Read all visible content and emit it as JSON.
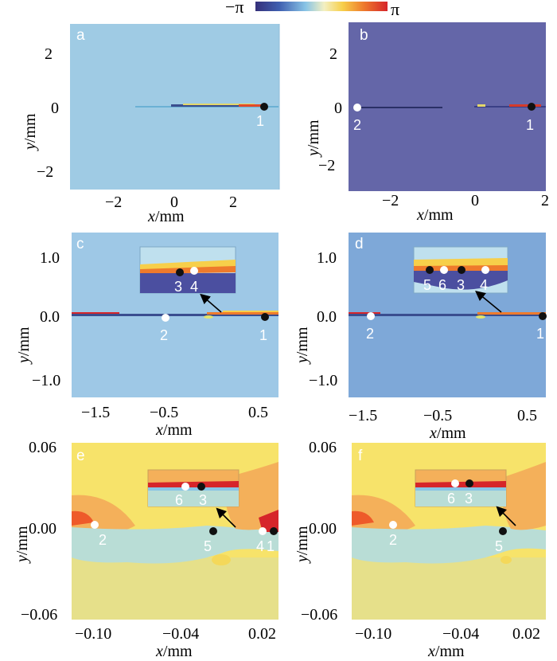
{
  "colorbar": {
    "min_label": "−π",
    "max_label": "π",
    "colors": [
      "#35307a",
      "#3f5fb0",
      "#88c4e6",
      "#f3f0c2",
      "#f7cf4a",
      "#ee7a2c",
      "#d6252a"
    ]
  },
  "panels": {
    "a": {
      "label": "a",
      "background": "#9fcbe4",
      "x_ticks": [
        "−2",
        "0",
        "2"
      ],
      "y_ticks": [
        "2",
        "0",
        "−2"
      ],
      "xlabel_var": "x",
      "xlabel_unit": "/mm",
      "ylabel_var": "y",
      "ylabel_unit": "/mm",
      "points": [
        {
          "id": "1",
          "color": "black",
          "label": "1"
        }
      ]
    },
    "b": {
      "label": "b",
      "background": "#6466a8",
      "x_ticks": [
        "−2",
        "0",
        "2"
      ],
      "y_ticks": [
        "2",
        "0",
        "−2"
      ],
      "xlabel_var": "x",
      "xlabel_unit": "/mm",
      "ylabel_var": "y",
      "ylabel_unit": "/mm",
      "points": [
        {
          "id": "2",
          "color": "white",
          "label": "2"
        },
        {
          "id": "1",
          "color": "black",
          "label": "1"
        }
      ]
    },
    "c": {
      "label": "c",
      "background": "#9ec8e6",
      "x_ticks": [
        "−1.5",
        "−0.5",
        "0.5"
      ],
      "y_ticks": [
        "1.0",
        "0.0",
        "−1.0"
      ],
      "xlabel_var": "x",
      "xlabel_unit": "/mm",
      "ylabel_var": "y",
      "ylabel_unit": "/mm",
      "points": [
        {
          "id": "2",
          "color": "white",
          "label": "2"
        },
        {
          "id": "1",
          "color": "black",
          "label": "1"
        }
      ],
      "inset_points": [
        {
          "id": "3",
          "color": "black",
          "label": "3"
        },
        {
          "id": "4",
          "color": "white",
          "label": "4"
        }
      ]
    },
    "d": {
      "label": "d",
      "background": "#7ea8d8",
      "x_ticks": [
        "−1.5",
        "−0.5",
        "0.5"
      ],
      "y_ticks": [
        "1.0",
        "0.0",
        "−1.0"
      ],
      "xlabel_var": "x",
      "xlabel_unit": "/mm",
      "ylabel_var": "y",
      "ylabel_unit": "/mm",
      "points": [
        {
          "id": "2",
          "color": "white",
          "label": "2"
        },
        {
          "id": "1",
          "color": "black",
          "label": "1"
        }
      ],
      "inset_points": [
        {
          "id": "5",
          "color": "black",
          "label": "5"
        },
        {
          "id": "6",
          "color": "white",
          "label": "6"
        },
        {
          "id": "3",
          "color": "black",
          "label": "3"
        },
        {
          "id": "4",
          "color": "white",
          "label": "4"
        }
      ]
    },
    "e": {
      "label": "e",
      "background": "#f7e36a",
      "x_ticks": [
        "−0.10",
        "−0.04",
        "0.02"
      ],
      "y_ticks": [
        "0.06",
        "0.00",
        "−0.06"
      ],
      "xlabel_var": "x",
      "xlabel_unit": "/mm",
      "ylabel_var": "y",
      "ylabel_unit": "/mm",
      "points": [
        {
          "id": "2",
          "color": "white",
          "label": "2"
        },
        {
          "id": "5",
          "color": "black",
          "label": "5"
        },
        {
          "id": "4",
          "color": "white",
          "label": "4"
        },
        {
          "id": "1",
          "color": "black",
          "label": "1"
        }
      ],
      "inset_points": [
        {
          "id": "6",
          "color": "white",
          "label": "6"
        },
        {
          "id": "3",
          "color": "black",
          "label": "3"
        }
      ]
    },
    "f": {
      "label": "f",
      "background": "#f7e36a",
      "x_ticks": [
        "−0.10",
        "−0.04",
        "0.02"
      ],
      "y_ticks": [
        "0.06",
        "0.00",
        "−0.06"
      ],
      "xlabel_var": "x",
      "xlabel_unit": "/mm",
      "ylabel_var": "y",
      "ylabel_unit": "/mm",
      "points": [
        {
          "id": "2",
          "color": "white",
          "label": "2"
        },
        {
          "id": "5",
          "color": "black",
          "label": "5"
        }
      ],
      "inset_points": [
        {
          "id": "6",
          "color": "white",
          "label": "6"
        },
        {
          "id": "3",
          "color": "black",
          "label": "3"
        }
      ]
    }
  }
}
